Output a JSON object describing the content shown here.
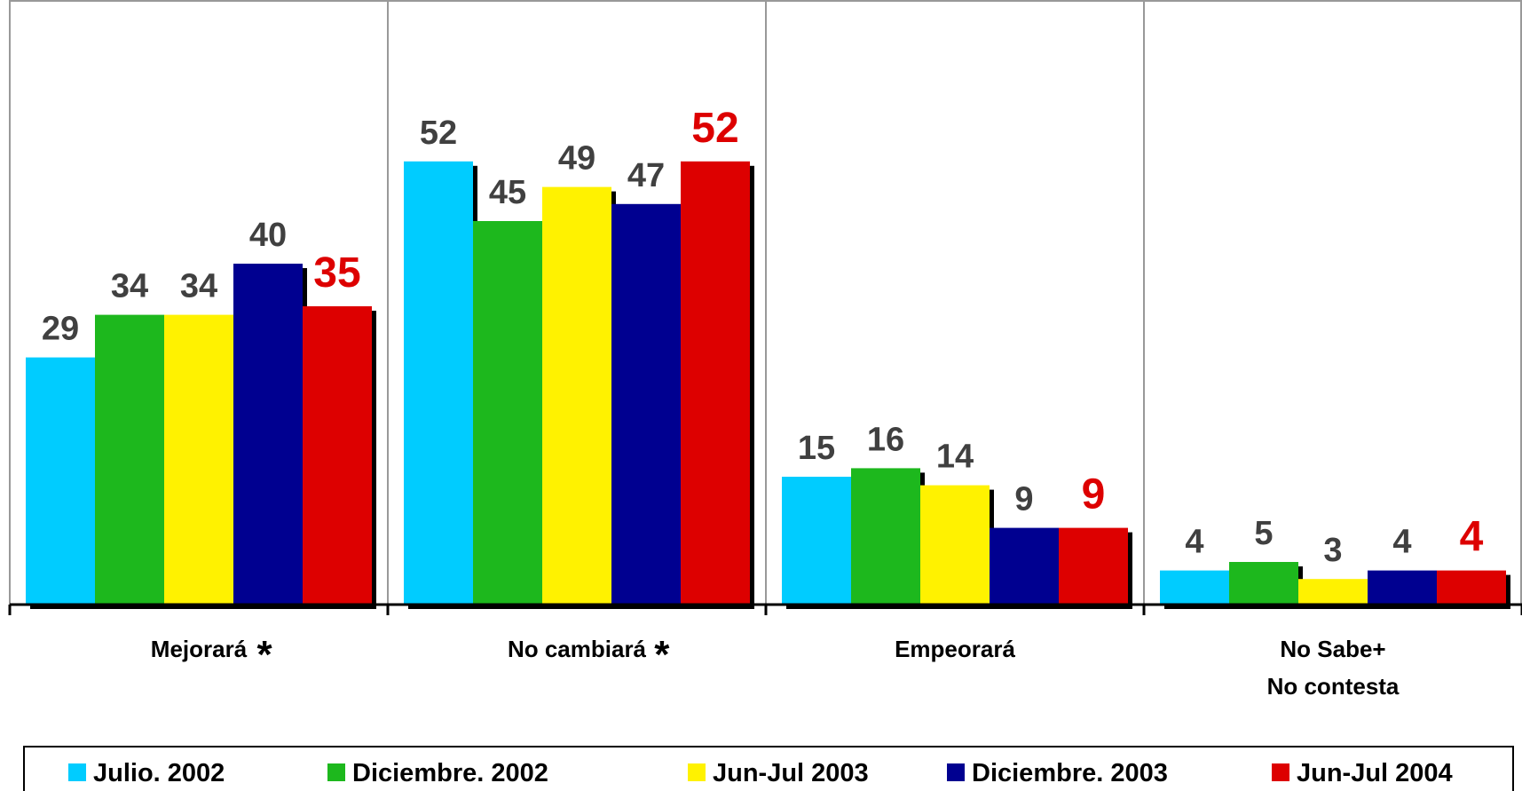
{
  "chart_data": {
    "type": "bar",
    "categories": [
      "Mejorará",
      "No cambiará",
      "Empeorará",
      "No Sabe+\nNo contesta"
    ],
    "annotations": [
      {
        "category": 0,
        "text": "*"
      },
      {
        "category": 1,
        "text": "*"
      }
    ],
    "series": [
      {
        "name": "Julio. 2002",
        "color": "#00ccff",
        "values": [
          29,
          52,
          15,
          4
        ]
      },
      {
        "name": "Diciembre. 2002",
        "color": "#1db81d",
        "values": [
          34,
          45,
          16,
          5
        ]
      },
      {
        "name": "Jun-Jul 2003",
        "color": "#fff200",
        "values": [
          34,
          49,
          14,
          3
        ]
      },
      {
        "name": "Diciembre. 2003",
        "color": "#000090",
        "values": [
          40,
          47,
          9,
          4
        ]
      },
      {
        "name": "Jun-Jul 2004",
        "color": "#dd0000",
        "values": [
          35,
          52,
          9,
          4
        ]
      }
    ],
    "ylim": [
      0,
      70
    ],
    "legend": "bottom"
  }
}
